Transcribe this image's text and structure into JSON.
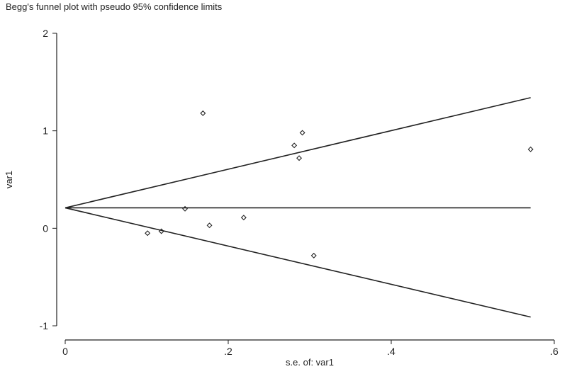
{
  "chart_data": {
    "type": "scatter",
    "title": "Begg's funnel plot with pseudo 95% confidence limits",
    "xlabel": "s.e. of: var1",
    "ylabel": "var1",
    "xlim": [
      0,
      0.6
    ],
    "ylim": [
      -1,
      2
    ],
    "x_ticks": [
      0,
      0.2,
      0.4,
      0.6
    ],
    "x_tick_labels": [
      "0",
      ".2",
      ".4",
      ".6"
    ],
    "y_ticks": [
      -1,
      0,
      1,
      2
    ],
    "y_tick_labels": [
      "-1",
      "0",
      "1",
      "2"
    ],
    "grid": false,
    "legend": "none",
    "points": [
      {
        "x": 0.101,
        "y": -0.05
      },
      {
        "x": 0.118,
        "y": -0.03
      },
      {
        "x": 0.147,
        "y": 0.2
      },
      {
        "x": 0.169,
        "y": 1.18
      },
      {
        "x": 0.177,
        "y": 0.03
      },
      {
        "x": 0.219,
        "y": 0.11
      },
      {
        "x": 0.281,
        "y": 0.85
      },
      {
        "x": 0.287,
        "y": 0.72
      },
      {
        "x": 0.291,
        "y": 0.98
      },
      {
        "x": 0.305,
        "y": -0.28
      },
      {
        "x": 0.571,
        "y": 0.81
      }
    ],
    "pooled_estimate": 0.21,
    "funnel": {
      "center": 0.21,
      "x_end": 0.571,
      "upper_end": 1.34,
      "lower_end": -0.91
    }
  }
}
